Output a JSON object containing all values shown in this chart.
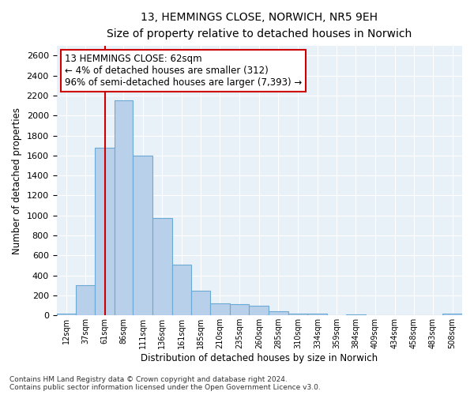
{
  "title_line1": "13, HEMMINGS CLOSE, NORWICH, NR5 9EH",
  "title_line2": "Size of property relative to detached houses in Norwich",
  "xlabel": "Distribution of detached houses by size in Norwich",
  "ylabel": "Number of detached properties",
  "bar_color": "#b8d0ea",
  "bar_edge_color": "#6aaad4",
  "background_color": "#e8f0f8",
  "annotation_text": "13 HEMMINGS CLOSE: 62sqm\n← 4% of detached houses are smaller (312)\n96% of semi-detached houses are larger (7,393) →",
  "annotation_box_facecolor": "#ffffff",
  "annotation_box_edgecolor": "#cc0000",
  "property_line_x": 62,
  "property_line_color": "#cc0000",
  "categories": [
    "12sqm",
    "37sqm",
    "61sqm",
    "86sqm",
    "111sqm",
    "136sqm",
    "161sqm",
    "185sqm",
    "210sqm",
    "235sqm",
    "260sqm",
    "285sqm",
    "310sqm",
    "334sqm",
    "359sqm",
    "384sqm",
    "409sqm",
    "434sqm",
    "458sqm",
    "483sqm",
    "508sqm"
  ],
  "bin_edges": [
    0,
    25,
    49,
    74,
    98,
    123,
    148,
    173,
    197,
    222,
    247,
    272,
    297,
    322,
    347,
    371,
    396,
    421,
    446,
    470,
    495,
    520
  ],
  "values": [
    20,
    300,
    1680,
    2150,
    1600,
    975,
    510,
    245,
    120,
    115,
    95,
    40,
    20,
    15,
    5,
    10,
    5,
    5,
    5,
    5,
    20
  ],
  "ylim": [
    0,
    2700
  ],
  "yticks": [
    0,
    200,
    400,
    600,
    800,
    1000,
    1200,
    1400,
    1600,
    1800,
    2000,
    2200,
    2400,
    2600
  ],
  "footnote1": "Contains HM Land Registry data © Crown copyright and database right 2024.",
  "footnote2": "Contains public sector information licensed under the Open Government Licence v3.0."
}
